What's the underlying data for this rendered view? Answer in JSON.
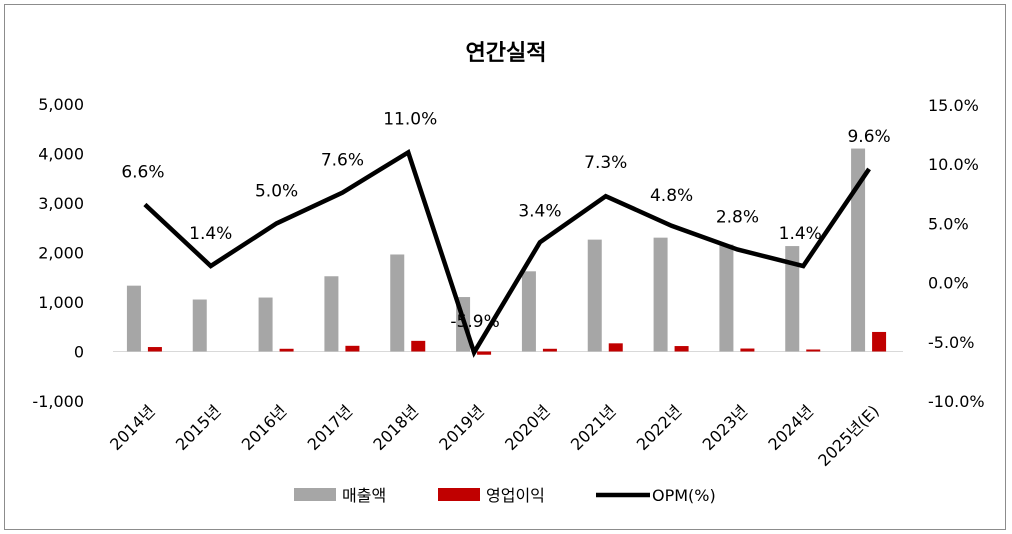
{
  "chart_data": {
    "type": "bar",
    "title": "연간실적",
    "categories": [
      "2014년",
      "2015년",
      "2016년",
      "2017년",
      "2018년",
      "2019년",
      "2020년",
      "2021년",
      "2022년",
      "2023년",
      "2024년",
      "2025년(E)"
    ],
    "series": [
      {
        "name": "매출액",
        "type": "bar",
        "axis": "left",
        "color": "#a6a6a6",
        "values": [
          1330,
          1050,
          1090,
          1520,
          1960,
          1100,
          1620,
          2260,
          2300,
          2160,
          2130,
          4100
        ]
      },
      {
        "name": "영업이익",
        "type": "bar",
        "axis": "left",
        "color": "#c00000",
        "values": [
          90,
          0,
          55,
          115,
          215,
          -65,
          55,
          165,
          110,
          60,
          30,
          395
        ]
      },
      {
        "name": "OPM(%)",
        "type": "line",
        "axis": "right",
        "color": "#000000",
        "values": [
          6.6,
          1.4,
          5.0,
          7.6,
          11.0,
          -5.9,
          3.4,
          7.3,
          4.8,
          2.8,
          1.4,
          9.6
        ],
        "labels": [
          "6.6%",
          "1.4%",
          "5.0%",
          "7.6%",
          "11.0%",
          "-5.9%",
          "3.4%",
          "7.3%",
          "4.8%",
          "2.8%",
          "1.4%",
          "9.6%"
        ]
      }
    ],
    "y_left": {
      "min": -1000,
      "max": 5000,
      "step": 1000,
      "tick_labels": [
        "-1,000",
        "0",
        "1,000",
        "2,000",
        "3,000",
        "4,000",
        "5,000"
      ]
    },
    "y_right": {
      "min": -10,
      "max": 15,
      "step": 5,
      "tick_labels": [
        "-10.0%",
        "-5.0%",
        "0.0%",
        "5.0%",
        "10.0%",
        "15.0%"
      ]
    },
    "legend": {
      "position": "bottom",
      "entries": [
        "매출액",
        "영업이익",
        "OPM(%)"
      ]
    },
    "grid": false
  }
}
